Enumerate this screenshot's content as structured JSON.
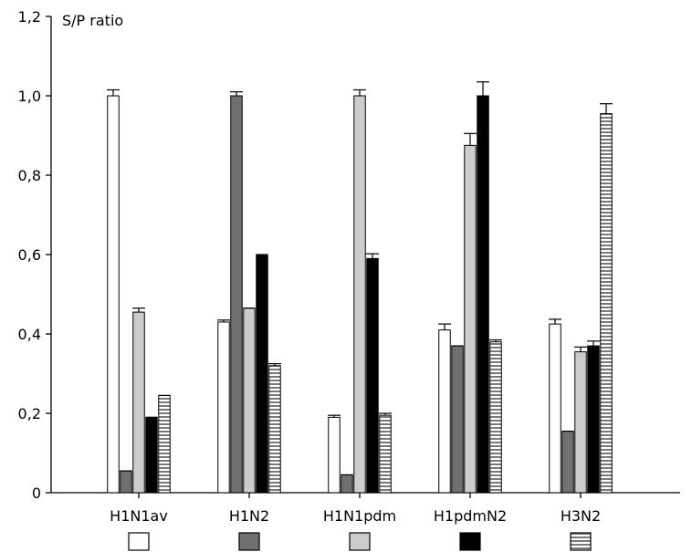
{
  "chart_data": {
    "type": "bar",
    "ylabel": "S/P ratio",
    "ylim": [
      0,
      1.2
    ],
    "y_ticks": [
      "0",
      "0,2",
      "0,4",
      "0,6",
      "0,8",
      "1,0",
      "1,2"
    ],
    "categories": [
      "H1N1av",
      "H1N2",
      "H1N1pdm",
      "H1pdmN2",
      "H3N2"
    ],
    "grid": false,
    "legend": {
      "placement": "bottom",
      "labels_shown": false
    },
    "series": [
      {
        "fill": "#ffffff",
        "pattern": "none",
        "values": [
          1.0,
          0.43,
          0.19,
          0.41,
          0.425
        ],
        "errors": [
          0.015,
          0.005,
          0.005,
          0.015,
          0.012
        ]
      },
      {
        "fill": "#707070",
        "pattern": "none",
        "values": [
          0.055,
          1.0,
          0.045,
          0.37,
          0.155
        ],
        "errors": [
          0.0,
          0.01,
          0.0,
          0.0,
          0.0
        ]
      },
      {
        "fill": "#cccccc",
        "pattern": "none",
        "values": [
          0.455,
          0.465,
          1.0,
          0.875,
          0.355
        ],
        "errors": [
          0.01,
          0.0,
          0.015,
          0.03,
          0.012
        ]
      },
      {
        "fill": "#000000",
        "pattern": "none",
        "values": [
          0.19,
          0.6,
          0.59,
          1.0,
          0.37
        ],
        "errors": [
          0.0,
          0.0,
          0.012,
          0.035,
          0.012
        ]
      },
      {
        "fill": "#888888",
        "pattern": "horizontal-stripes",
        "values": [
          0.245,
          0.32,
          0.195,
          0.38,
          0.955
        ],
        "errors": [
          0.0,
          0.005,
          0.005,
          0.005,
          0.025
        ]
      }
    ]
  }
}
